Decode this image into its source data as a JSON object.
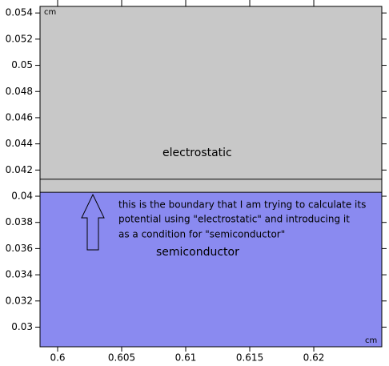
{
  "chart_data": {
    "type": "geometry",
    "x_unit": "cm",
    "y_unit": "cm",
    "xlim": [
      0.598625,
      0.62531
    ],
    "ylim": [
      0.0285,
      0.0545
    ],
    "xticks": [
      {
        "value": 0.6,
        "label": "0.6"
      },
      0.605,
      0.61,
      0.615,
      0.62
    ],
    "yticks": [
      0.03,
      0.032,
      0.034,
      0.036,
      0.038,
      {
        "value": 0.04,
        "label": "0.04"
      },
      0.042,
      0.044,
      0.046,
      0.048,
      {
        "value": 0.05,
        "label": "0.05"
      },
      0.052,
      0.054
    ],
    "regions": [
      {
        "name": "electrostatic",
        "color": "#c8c8c8",
        "ylim": [
          0.0403,
          0.0545
        ]
      },
      {
        "name": "semiconductor",
        "color": "#8a8af0",
        "ylim": [
          0.0285,
          0.0403
        ]
      }
    ],
    "boundary": 0.0413,
    "annotation": [
      "this is the boundary that I am trying to calculate its",
      "potential using \"electrostatic\"  and introducing it",
      "as a condition for \"semiconductor\""
    ]
  }
}
